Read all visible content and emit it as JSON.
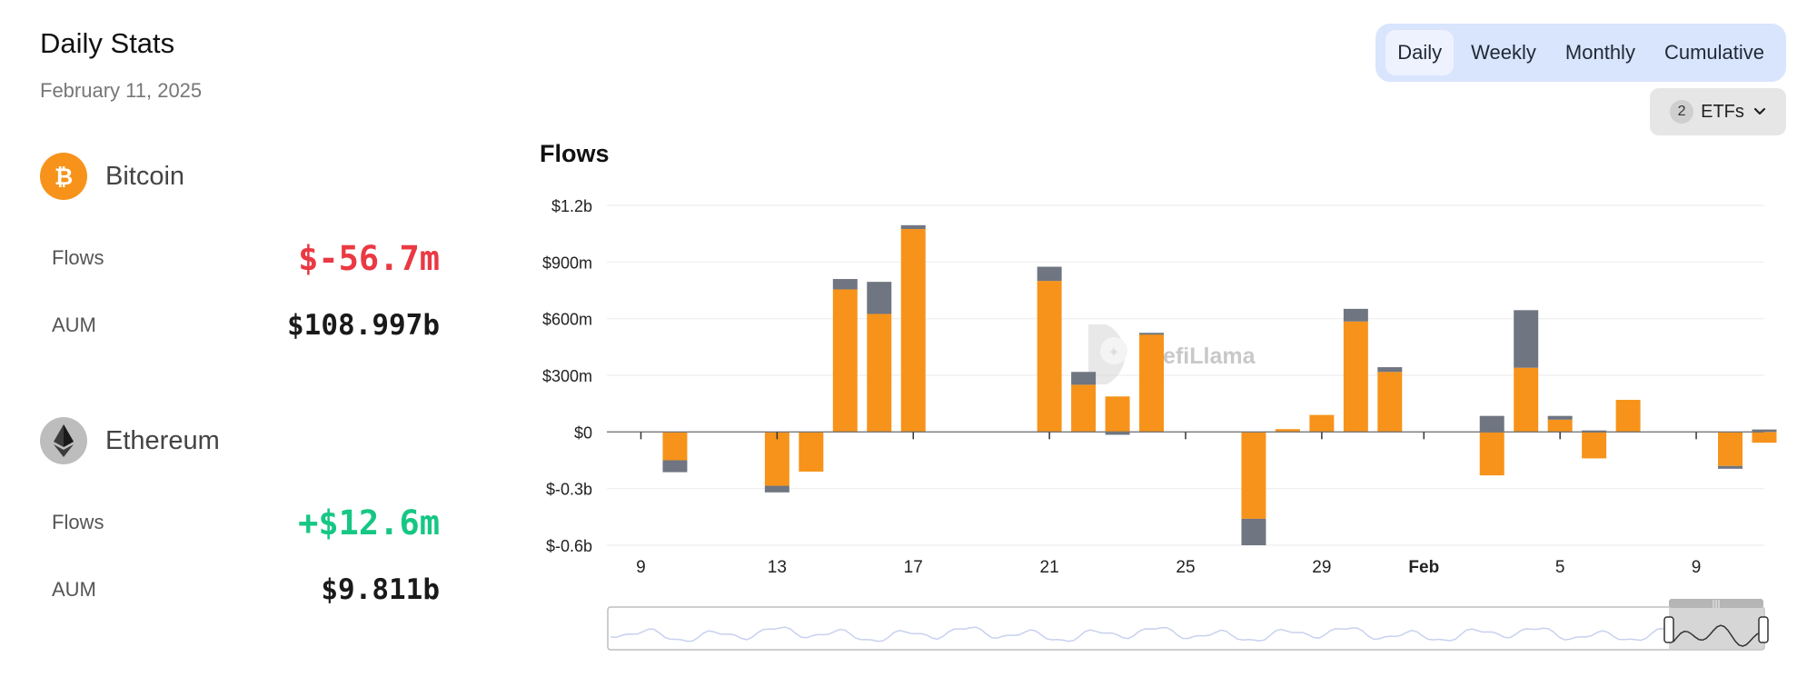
{
  "header": {
    "title": "Daily Stats",
    "date": "February 11, 2025"
  },
  "assets": [
    {
      "name": "Bitcoin",
      "icon": "bitcoin-icon",
      "flows_label": "Flows",
      "flows": "$-56.7m",
      "aum_label": "AUM",
      "aum": "$108.997b"
    },
    {
      "name": "Ethereum",
      "icon": "ethereum-icon",
      "flows_label": "Flows",
      "flows": "+$12.6m",
      "aum_label": "AUM",
      "aum": "$9.811b"
    }
  ],
  "tabs": [
    "Daily",
    "Weekly",
    "Monthly",
    "Cumulative"
  ],
  "active_tab": "Daily",
  "etf_filter": {
    "count": "2",
    "label": "ETFs",
    "icon": "chevron-down-icon"
  },
  "watermark": "DefiLlama",
  "colors": {
    "bitcoin": "#f7931a",
    "ethereum": "#6f7581",
    "negative": "#ea3943",
    "positive": "#16c784",
    "active_tab_bg": "#eef2fe",
    "tabs_bg": "#d9e4fd"
  },
  "chart_data": {
    "type": "bar",
    "stacked": true,
    "title": "Flows",
    "legend": "none",
    "grid": true,
    "y_unit": "USD millions",
    "ylim": [
      -600,
      1200
    ],
    "y_ticks": [
      {
        "value": 1200,
        "label": "$1.2b"
      },
      {
        "value": 900,
        "label": "$900m"
      },
      {
        "value": 600,
        "label": "$600m"
      },
      {
        "value": 300,
        "label": "$300m"
      },
      {
        "value": 0,
        "label": "$0"
      },
      {
        "value": -300,
        "label": "$-0.3b"
      },
      {
        "value": -600,
        "label": "$-0.6b"
      }
    ],
    "x_ticks": [
      {
        "date": "2025-01-09",
        "label": "9"
      },
      {
        "date": "2025-01-13",
        "label": "13"
      },
      {
        "date": "2025-01-17",
        "label": "17"
      },
      {
        "date": "2025-01-21",
        "label": "21"
      },
      {
        "date": "2025-01-25",
        "label": "25"
      },
      {
        "date": "2025-01-29",
        "label": "29"
      },
      {
        "date": "2025-02-01",
        "label": "Feb",
        "bold": true
      },
      {
        "date": "2025-02-05",
        "label": "5"
      },
      {
        "date": "2025-02-09",
        "label": "9"
      }
    ],
    "x_range": [
      "2025-01-08",
      "2025-02-11"
    ],
    "x": [
      "2025-01-10",
      "2025-01-13",
      "2025-01-14",
      "2025-01-15",
      "2025-01-16",
      "2025-01-17",
      "2025-01-21",
      "2025-01-22",
      "2025-01-23",
      "2025-01-24",
      "2025-01-27",
      "2025-01-28",
      "2025-01-29",
      "2025-01-30",
      "2025-01-31",
      "2025-02-03",
      "2025-02-04",
      "2025-02-05",
      "2025-02-06",
      "2025-02-07",
      "2025-02-10",
      "2025-02-11"
    ],
    "series": [
      {
        "color": "#f7931a",
        "values": [
          -150,
          -285,
          -210,
          755,
          625,
          1075,
          800,
          250,
          188,
          520,
          -460,
          15,
          90,
          585,
          318,
          -230,
          340,
          65,
          -140,
          170,
          -180,
          -57
        ]
      },
      {
        "color": "#6f7581",
        "values": [
          -63,
          -35,
          0,
          55,
          170,
          20,
          75,
          68,
          -15,
          5,
          -140,
          0,
          0,
          67,
          25,
          85,
          305,
          20,
          8,
          0,
          -15,
          13
        ]
      }
    ]
  }
}
